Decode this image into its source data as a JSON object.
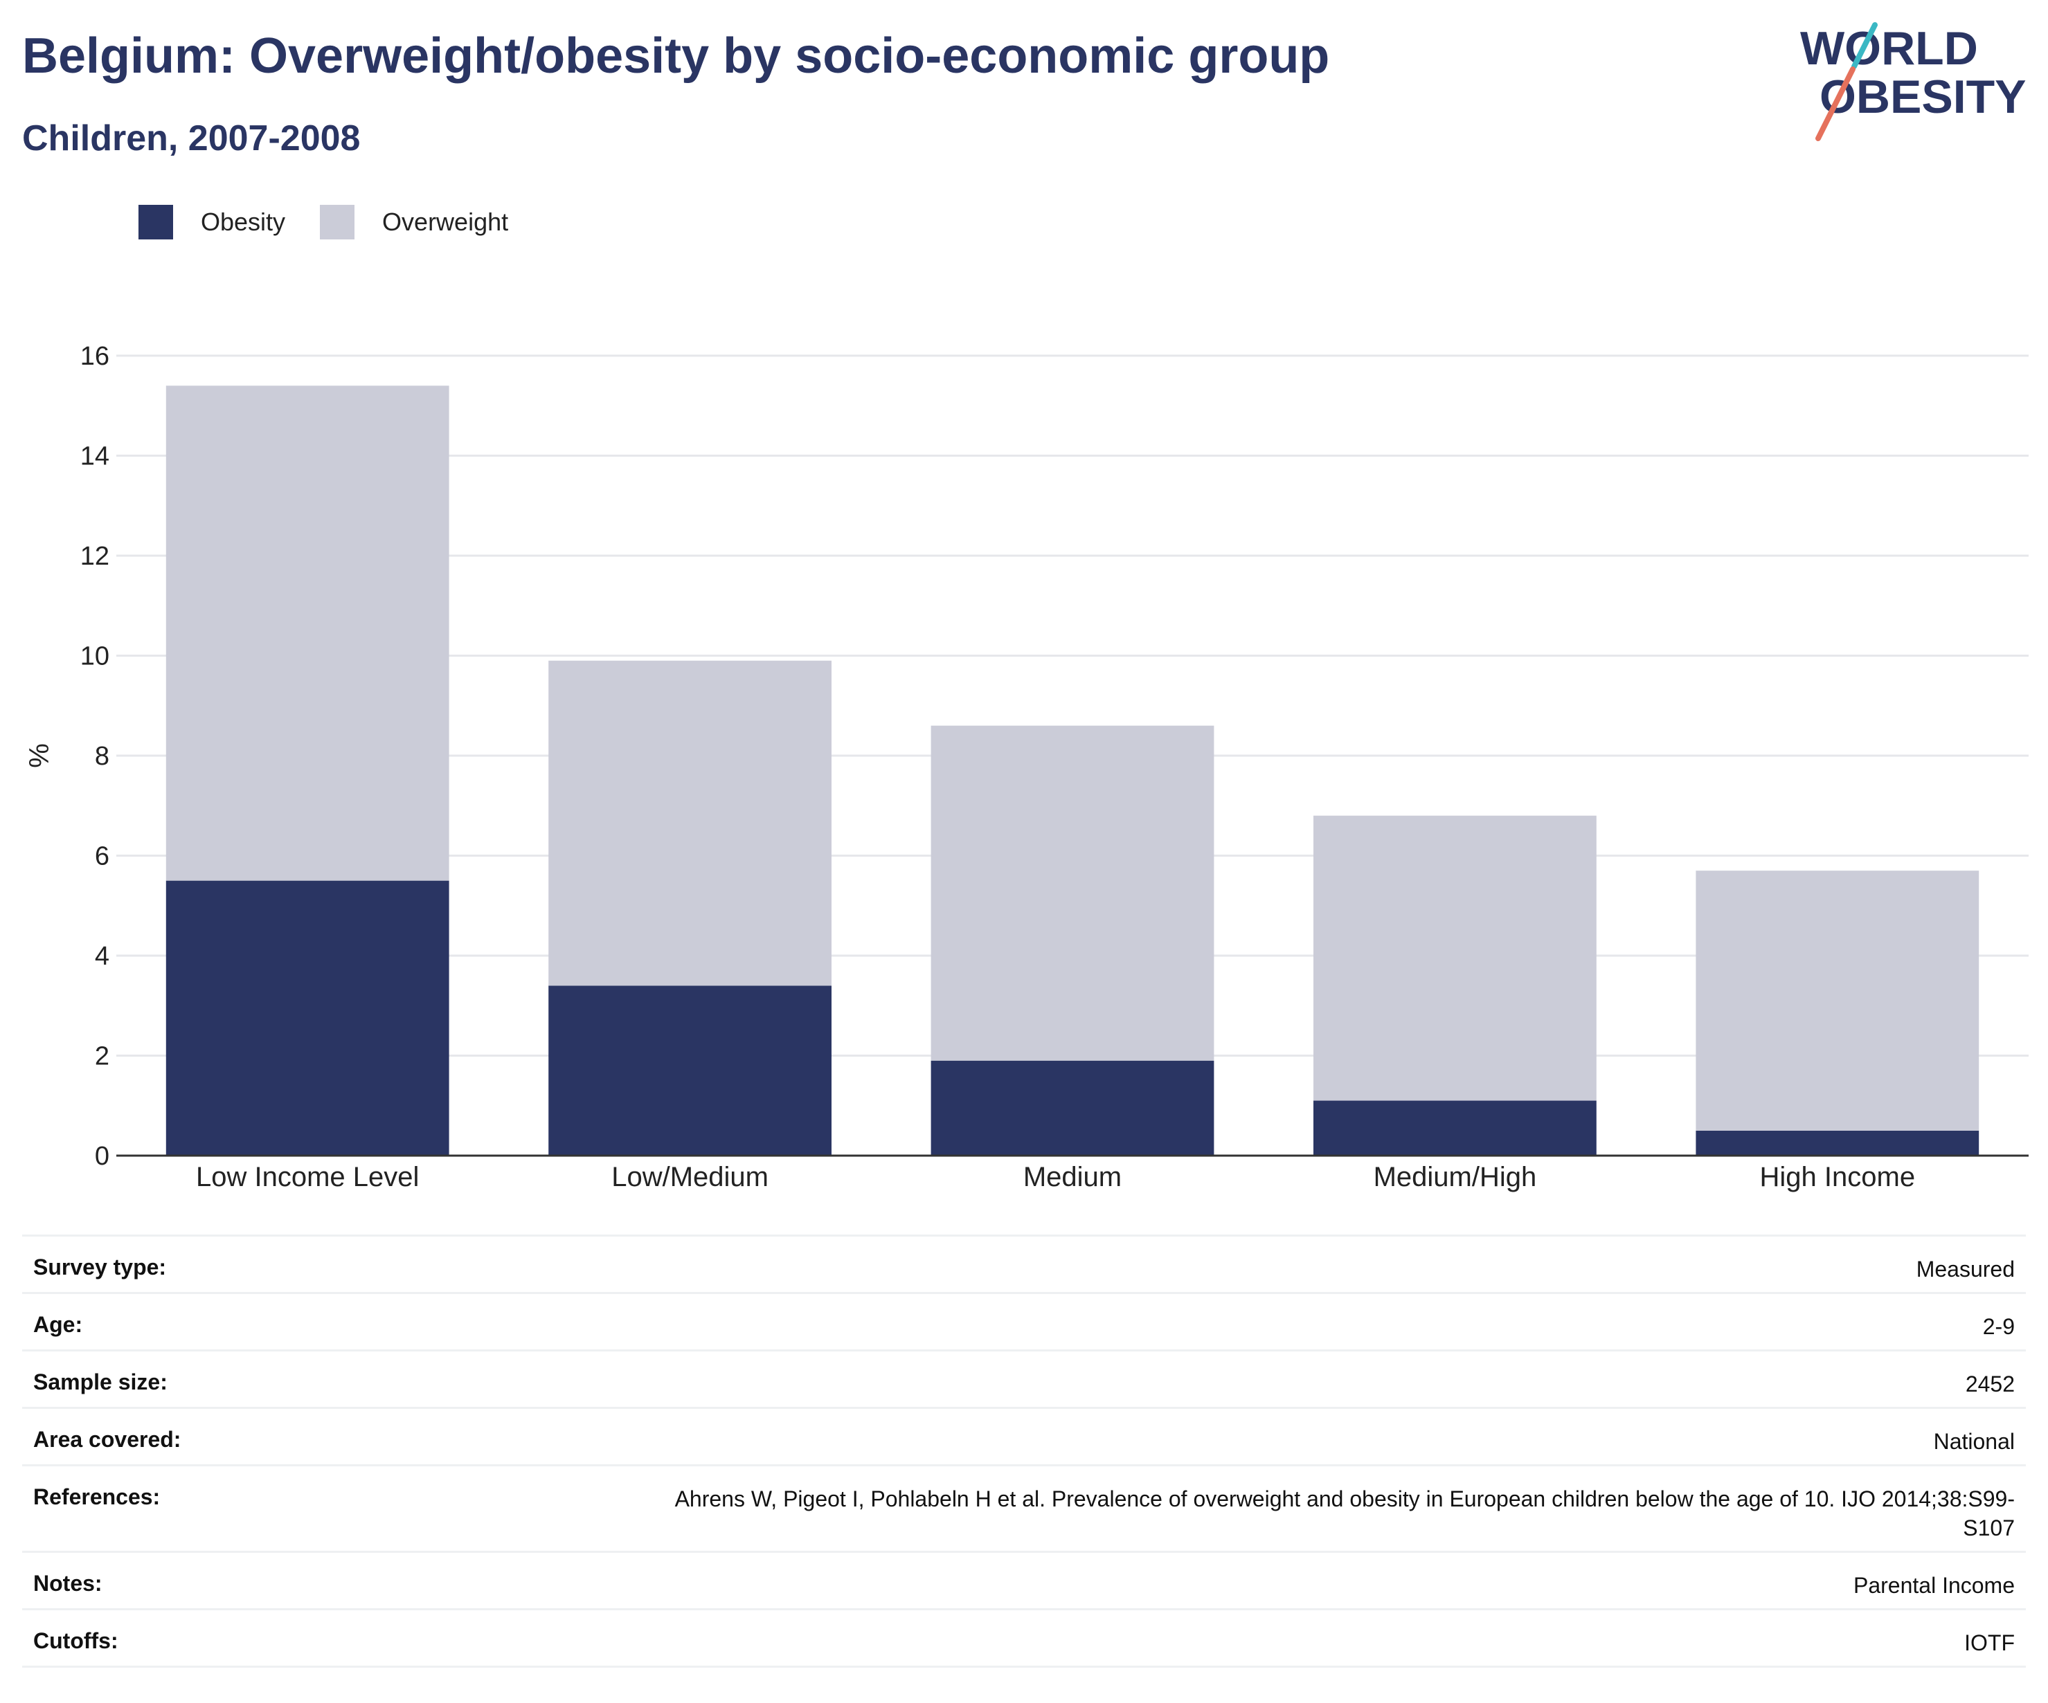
{
  "header": {
    "title": "Belgium: Overweight/obesity by socio-economic group",
    "subtitle": "Children, 2007-2008"
  },
  "logo": {
    "line1": "WORLD",
    "line2": "OBESITY",
    "accent_teal": "#3bb8c4",
    "accent_coral": "#e5715c"
  },
  "legend": {
    "items": [
      {
        "label": "Obesity",
        "color": "#2a3563"
      },
      {
        "label": "Overweight",
        "color": "#cbccd8"
      }
    ]
  },
  "chart_data": {
    "type": "bar",
    "stacked": true,
    "categories": [
      "Low Income Level",
      "Low/Medium",
      "Medium",
      "Medium/High",
      "High Income"
    ],
    "series": [
      {
        "name": "Obesity",
        "color": "#2a3563",
        "values": [
          5.5,
          3.4,
          1.9,
          1.1,
          0.5
        ]
      },
      {
        "name": "Overweight",
        "color": "#cbccd8",
        "values": [
          9.9,
          6.5,
          6.7,
          5.7,
          5.2
        ]
      }
    ],
    "ylabel": "%",
    "ylim": [
      0,
      16
    ],
    "yticks": [
      0,
      2,
      4,
      6,
      8,
      10,
      12,
      14,
      16
    ],
    "grid": true,
    "legend_position": "top-left"
  },
  "details": [
    {
      "label": "Survey type:",
      "value": "Measured"
    },
    {
      "label": "Age:",
      "value": "2-9"
    },
    {
      "label": "Sample size:",
      "value": "2452"
    },
    {
      "label": "Area covered:",
      "value": "National"
    },
    {
      "label": "References:",
      "value": "Ahrens W, Pigeot I, Pohlabeln H et al. Prevalence of overweight and obesity in European children below the age of 10. IJO 2014;38:S99-S107"
    },
    {
      "label": "Notes:",
      "value": "Parental Income"
    },
    {
      "label": "Cutoffs:",
      "value": "IOTF"
    }
  ]
}
